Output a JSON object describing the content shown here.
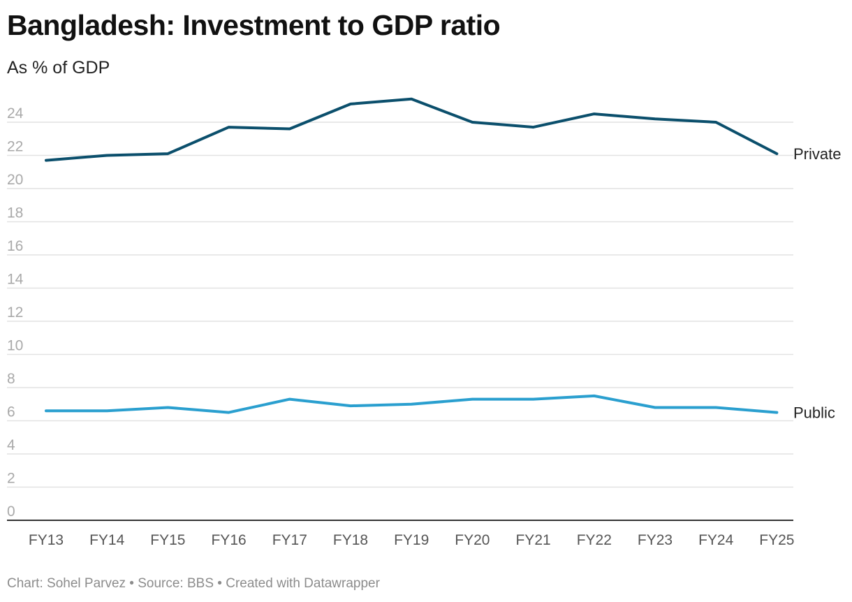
{
  "header": {
    "title": "Bangladesh: Investment to GDP ratio",
    "subtitle": "As % of GDP"
  },
  "footer": {
    "credit": "Chart: Sohel Parvez • Source: BBS • Created with Datawrapper"
  },
  "colors": {
    "private": "#0b4f6c",
    "public": "#2a9fcf",
    "grid": "#e2e2e2",
    "axis": "#333333"
  },
  "chart_data": {
    "type": "line",
    "categories": [
      "FY13",
      "FY14",
      "FY15",
      "FY16",
      "FY17",
      "FY18",
      "FY19",
      "FY20",
      "FY21",
      "FY22",
      "FY23",
      "FY24",
      "FY25"
    ],
    "yticks": [
      0,
      2,
      4,
      6,
      8,
      10,
      12,
      14,
      16,
      18,
      20,
      22,
      24
    ],
    "ylim": [
      0,
      24
    ],
    "grid": true,
    "series": [
      {
        "name": "Private",
        "key": "private",
        "values": [
          21.7,
          22.0,
          22.1,
          23.7,
          23.6,
          25.1,
          25.4,
          24.0,
          23.7,
          24.5,
          24.2,
          24.0,
          22.1
        ]
      },
      {
        "name": "Public",
        "key": "public",
        "values": [
          6.6,
          6.6,
          6.8,
          6.5,
          7.3,
          6.9,
          7.0,
          7.3,
          7.3,
          7.5,
          6.8,
          6.8,
          6.5
        ]
      }
    ]
  }
}
